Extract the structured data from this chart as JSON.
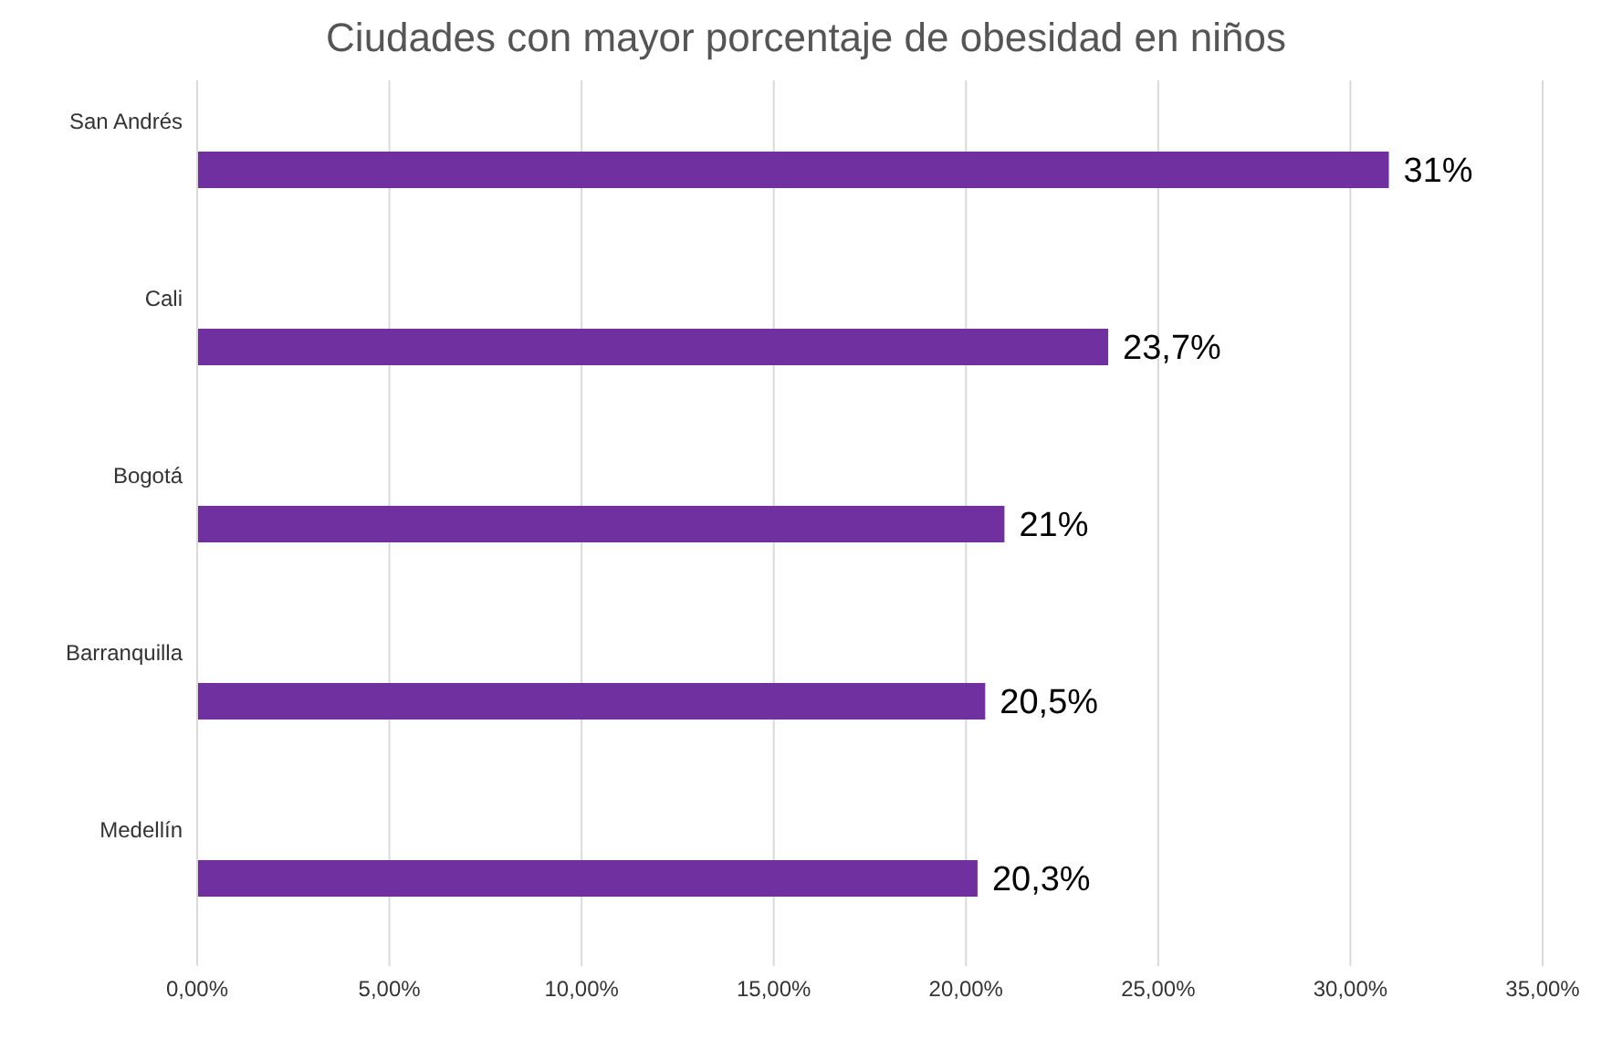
{
  "chart_data": {
    "type": "bar",
    "orientation": "horizontal",
    "title": "Ciudades con mayor porcentaje de obesidad en niños",
    "categories": [
      "San Andrés",
      "Cali",
      "Bogotá",
      "Barranquilla",
      "Medellín"
    ],
    "values": [
      31,
      23.7,
      21,
      20.5,
      20.3
    ],
    "value_labels": [
      "31%",
      "23,7%",
      "21%",
      "20,5%",
      "20,3%"
    ],
    "color": "#7030a0",
    "xlim": [
      0,
      35
    ],
    "xticks": [
      {
        "value": 0,
        "label": "0,00%"
      },
      {
        "value": 5,
        "label": "5,00%"
      },
      {
        "value": 10,
        "label": "10,00%"
      },
      {
        "value": 15,
        "label": "15,00%"
      },
      {
        "value": 20,
        "label": "20,00%"
      },
      {
        "value": 25,
        "label": "25,00%"
      },
      {
        "value": 30,
        "label": "30,00%"
      },
      {
        "value": 35,
        "label": "35,00%"
      }
    ],
    "grid": "x",
    "legend": false
  }
}
